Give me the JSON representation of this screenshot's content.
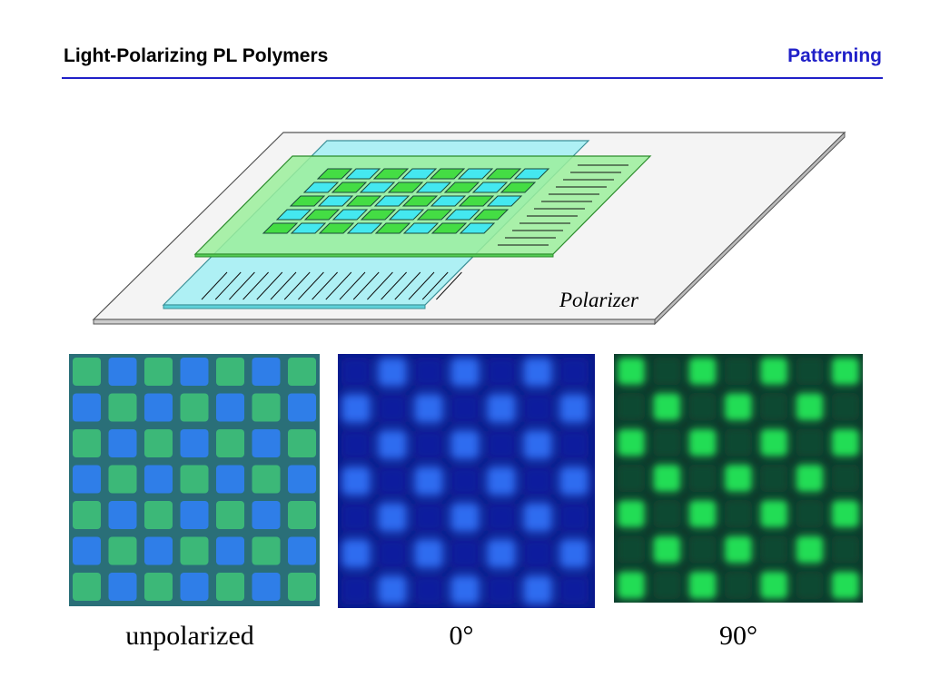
{
  "header": {
    "title": "Light-Polarizing PL Polymers",
    "section": "Patterning",
    "accent_color": "#2020c8"
  },
  "diagram": {
    "polarizer_label": "Polarizer",
    "cyan_color": "#44e8f0",
    "green_color": "#44dd44",
    "film_green": "#99ee99",
    "film_cyan": "#99eef2",
    "plate_color": "#f2f2f2"
  },
  "photos": [
    {
      "caption": "unpolarized",
      "name": "photo-unpolarized"
    },
    {
      "caption": "0°",
      "name": "photo-0-degrees"
    },
    {
      "caption": "90°",
      "name": "photo-90-degrees"
    }
  ]
}
